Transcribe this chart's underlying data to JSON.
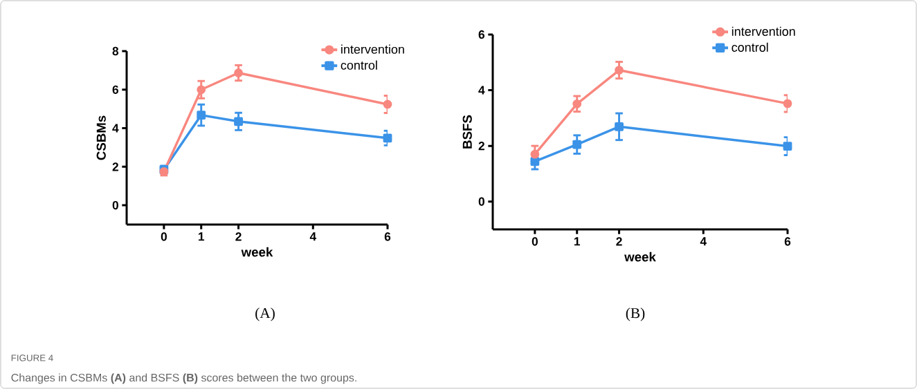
{
  "chart_data": [
    {
      "type": "line",
      "xlabel": "week",
      "ylabel": "CSBMs",
      "x": [
        0,
        1,
        2,
        6
      ],
      "xlim": [
        -1,
        6
      ],
      "xticks": [
        0,
        1,
        2,
        4,
        6
      ],
      "ylim": [
        -1,
        8
      ],
      "yticks": [
        0,
        2,
        4,
        6,
        8
      ],
      "grid": false,
      "legend": "top right",
      "series": [
        {
          "name": "intervention",
          "color": "#f8877f",
          "marker": "circle",
          "values": [
            1.75,
            6.0,
            6.87,
            5.24
          ],
          "errors": [
            0.2,
            0.45,
            0.4,
            0.45
          ]
        },
        {
          "name": "control",
          "color": "#3b93e8",
          "marker": "square",
          "values": [
            1.85,
            4.68,
            4.35,
            3.49
          ],
          "errors": [
            0.2,
            0.55,
            0.45,
            0.38
          ]
        }
      ],
      "annotations": [
        "(A)",
        "FIGURE 4",
        "Changes in CSBMs **(A)** and BSFS **(B)** scores between the two groups."
      ]
    },
    {
      "type": "line",
      "xlabel": "week",
      "ylabel": "BSFS",
      "x": [
        0,
        1,
        2,
        6
      ],
      "xlim": [
        -1,
        6
      ],
      "xticks": [
        0,
        1,
        2,
        4,
        6
      ],
      "ylim": [
        -1,
        6
      ],
      "yticks": [
        0,
        2,
        4,
        6
      ],
      "grid": false,
      "legend": "top right",
      "series": [
        {
          "name": "intervention",
          "color": "#f8877f",
          "marker": "circle",
          "values": [
            1.7,
            3.51,
            4.72,
            3.52
          ],
          "errors": [
            0.3,
            0.28,
            0.3,
            0.3
          ]
        },
        {
          "name": "control",
          "color": "#3b93e8",
          "marker": "square",
          "values": [
            1.44,
            2.05,
            2.69,
            1.99
          ],
          "errors": [
            0.28,
            0.33,
            0.48,
            0.32
          ]
        }
      ],
      "annotations": [
        "(B)"
      ]
    }
  ]
}
